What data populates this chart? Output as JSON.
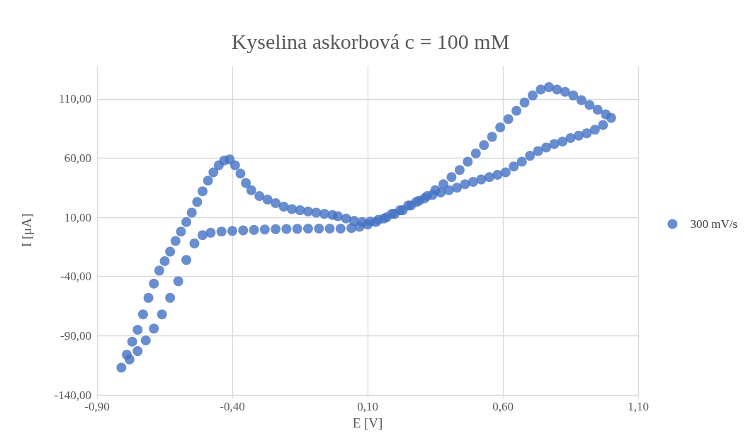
{
  "chart_data": {
    "type": "scatter",
    "title": "Kyselina askorbová c = 100 mM",
    "xlabel": "E [V]",
    "ylabel": "I [μA]",
    "series": [
      {
        "name": "300 mV/s",
        "color": "#4472c4",
        "x": [
          -0.01,
          0.02,
          0.05,
          0.08,
          0.11,
          0.14,
          0.17,
          0.2,
          0.23,
          0.26,
          0.29,
          0.32,
          0.35,
          0.38,
          0.41,
          0.44,
          0.47,
          0.5,
          0.53,
          0.56,
          0.59,
          0.62,
          0.65,
          0.68,
          0.71,
          0.74,
          0.77,
          0.8,
          0.83,
          0.86,
          0.89,
          0.92,
          0.95,
          0.98,
          1.0,
          0.97,
          0.94,
          0.91,
          0.88,
          0.85,
          0.82,
          0.79,
          0.76,
          0.73,
          0.7,
          0.67,
          0.64,
          0.61,
          0.58,
          0.55,
          0.52,
          0.49,
          0.46,
          0.43,
          0.4,
          0.37,
          0.34,
          0.31,
          0.28,
          0.25,
          0.22,
          0.19,
          0.16,
          0.13,
          0.1,
          0.07,
          0.04,
          0.0,
          -0.04,
          -0.08,
          -0.12,
          -0.16,
          -0.2,
          -0.24,
          -0.28,
          -0.32,
          -0.36,
          -0.4,
          -0.44,
          -0.48,
          -0.51,
          -0.54,
          -0.57,
          -0.6,
          -0.63,
          -0.66,
          -0.69,
          -0.72,
          -0.75,
          -0.78,
          -0.81,
          -0.79,
          -0.77,
          -0.75,
          -0.73,
          -0.71,
          -0.69,
          -0.67,
          -0.65,
          -0.63,
          -0.61,
          -0.59,
          -0.57,
          -0.55,
          -0.53,
          -0.51,
          -0.49,
          -0.47,
          -0.45,
          -0.43,
          -0.41,
          -0.39,
          -0.37,
          -0.35,
          -0.33,
          -0.3,
          -0.27,
          -0.24,
          -0.21,
          -0.18,
          -0.15,
          -0.12,
          -0.09,
          -0.06,
          -0.03
        ],
        "values": [
          11,
          9,
          7,
          6,
          6.5,
          8,
          10,
          13,
          16,
          20,
          24,
          28,
          33,
          38,
          44,
          50,
          57,
          64,
          71,
          78,
          86,
          93,
          100,
          107,
          113,
          118,
          120,
          118,
          116,
          113,
          109,
          105,
          101,
          97,
          94,
          88,
          84,
          81,
          79,
          77,
          74,
          72,
          69,
          66,
          62,
          57,
          53,
          48,
          46,
          44,
          42,
          40,
          38,
          35,
          33,
          31,
          29,
          26,
          23,
          20,
          16,
          13,
          9,
          6,
          4,
          2,
          1,
          0.5,
          0.5,
          0.5,
          0.5,
          0.3,
          0.2,
          0,
          -0.3,
          -0.6,
          -1,
          -1.5,
          -2,
          -3,
          -5,
          -12,
          -26,
          -44,
          -58,
          -72,
          -84,
          -94,
          -103,
          -110,
          -117,
          -106,
          -95,
          -85,
          -72,
          -58,
          -46,
          -35,
          -27,
          -19,
          -10,
          -2,
          6,
          14,
          23,
          32,
          41,
          48,
          54,
          58,
          59,
          54,
          47,
          39,
          33,
          28,
          25,
          22,
          19,
          17,
          16,
          15,
          14,
          13,
          12
        ]
      }
    ],
    "xlim": [
      -0.9,
      1.1
    ],
    "xticks": [
      {
        "value": -0.9,
        "label": "-0,90"
      },
      {
        "value": -0.4,
        "label": "-0,40"
      },
      {
        "value": 0.1,
        "label": "0,10"
      },
      {
        "value": 0.6,
        "label": "0,60"
      },
      {
        "value": 1.1,
        "label": "1,10"
      }
    ],
    "ylim": [
      -140,
      138
    ],
    "yticks": [
      {
        "value": -140,
        "label": "-140,00"
      },
      {
        "value": -90,
        "label": "-90,00"
      },
      {
        "value": -40,
        "label": "-40,00"
      },
      {
        "value": 10,
        "label": "10,00"
      },
      {
        "value": 60,
        "label": "60,00"
      },
      {
        "value": 110,
        "label": "110,00"
      }
    ],
    "grid": true,
    "legend": "right",
    "marker": "circle"
  }
}
